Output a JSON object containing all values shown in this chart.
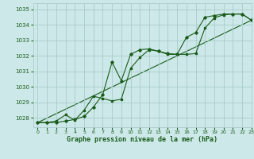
{
  "title": "Graphe pression niveau de la mer (hPa)",
  "bg_color": "#cce8e8",
  "grid_color": "#aacccc",
  "line_color": "#1a5c1a",
  "xlim": [
    -0.5,
    23
  ],
  "ylim": [
    1027.4,
    1035.4
  ],
  "yticks": [
    1028,
    1029,
    1030,
    1031,
    1032,
    1033,
    1034,
    1035
  ],
  "xticks": [
    0,
    1,
    2,
    3,
    4,
    5,
    6,
    7,
    8,
    9,
    10,
    11,
    12,
    13,
    14,
    15,
    16,
    17,
    18,
    19,
    20,
    21,
    22,
    23
  ],
  "series1_x": [
    0,
    1,
    2,
    3,
    4,
    5,
    6,
    7,
    8,
    9,
    10,
    11,
    12,
    13,
    14,
    15,
    16,
    17,
    18,
    19,
    20,
    21,
    22,
    23
  ],
  "series1_y": [
    1027.7,
    1027.7,
    1027.7,
    1027.8,
    1027.9,
    1028.1,
    1028.7,
    1029.5,
    1031.6,
    1030.4,
    1032.1,
    1032.4,
    1032.45,
    1032.3,
    1032.15,
    1032.1,
    1033.2,
    1033.5,
    1034.5,
    1034.6,
    1034.7,
    1034.7,
    1034.7,
    1034.3
  ],
  "series2_x": [
    0,
    1,
    2,
    3,
    4,
    5,
    6,
    7,
    8,
    9,
    10,
    11,
    12,
    13,
    14,
    15,
    16,
    17,
    18,
    19,
    20,
    21,
    22,
    23
  ],
  "series2_y": [
    1027.7,
    1027.7,
    1027.8,
    1028.2,
    1027.85,
    1028.5,
    1029.4,
    1029.25,
    1029.1,
    1029.2,
    1031.2,
    1031.9,
    1032.4,
    1032.3,
    1032.1,
    1032.1,
    1032.1,
    1032.15,
    1033.8,
    1034.45,
    1034.65,
    1034.7,
    1034.7,
    1034.3
  ],
  "series3_x": [
    0,
    23
  ],
  "series3_y": [
    1027.7,
    1034.3
  ],
  "ylabel_fontsize": 5.2,
  "xlabel_fontsize": 6.0,
  "xtick_fontsize": 4.5,
  "ytick_fontsize": 5.0,
  "linewidth": 0.8,
  "markersize": 1.8
}
